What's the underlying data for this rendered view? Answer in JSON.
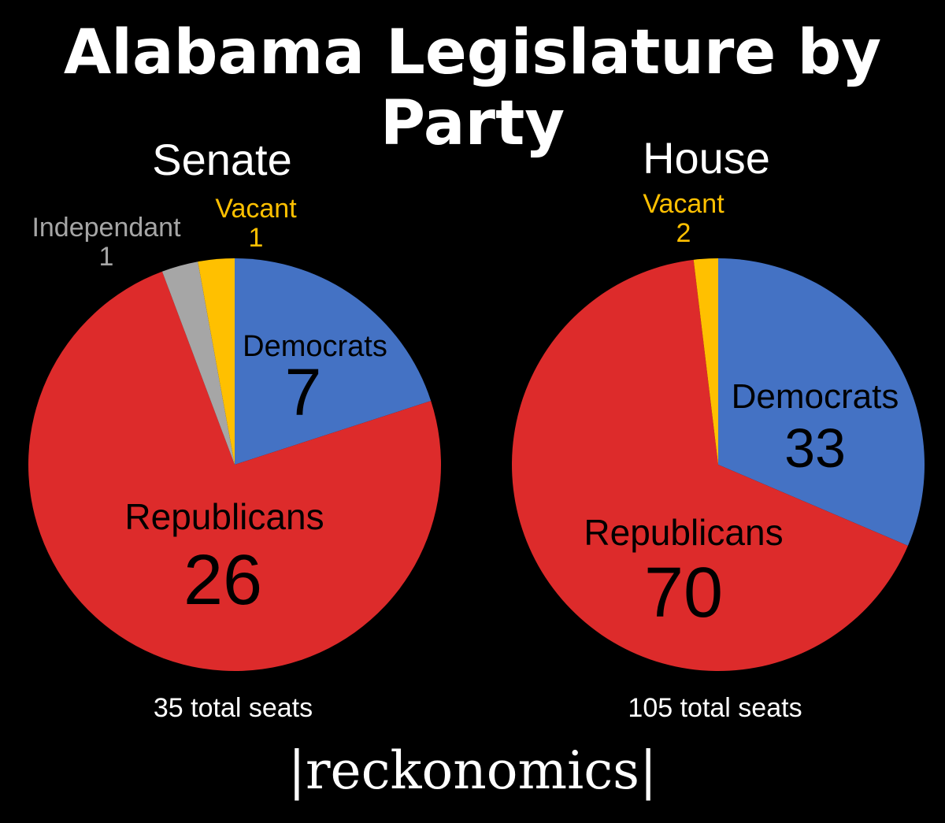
{
  "title": "Alabama Legislature by Party",
  "brand": "|reckonomics|",
  "colors": {
    "democrats": "#4472C4",
    "republicans": "#DD2B2B",
    "independant": "#A6A6A6",
    "vacant": "#FFC000",
    "background": "#000000"
  },
  "chart_data": [
    {
      "type": "pie",
      "title": "Senate",
      "footer": "35 total seats",
      "slices": [
        {
          "key": "democrats",
          "label": "Democrats",
          "value": 7,
          "display": "7"
        },
        {
          "key": "republicans",
          "label": "Republicans",
          "value": 26,
          "display": "26"
        },
        {
          "key": "independant",
          "label": "Independant",
          "value": 1,
          "display": "1"
        },
        {
          "key": "vacant",
          "label": "Vacant",
          "value": 1,
          "display": "1"
        }
      ]
    },
    {
      "type": "pie",
      "title": "House",
      "footer": "105 total seats",
      "slices": [
        {
          "key": "democrats",
          "label": "Democrats",
          "value": 33,
          "display": "33"
        },
        {
          "key": "republicans",
          "label": "Republicans",
          "value": 70,
          "display": "70"
        },
        {
          "key": "vacant",
          "label": "Vacant",
          "value": 2,
          "display": "2"
        }
      ]
    }
  ]
}
